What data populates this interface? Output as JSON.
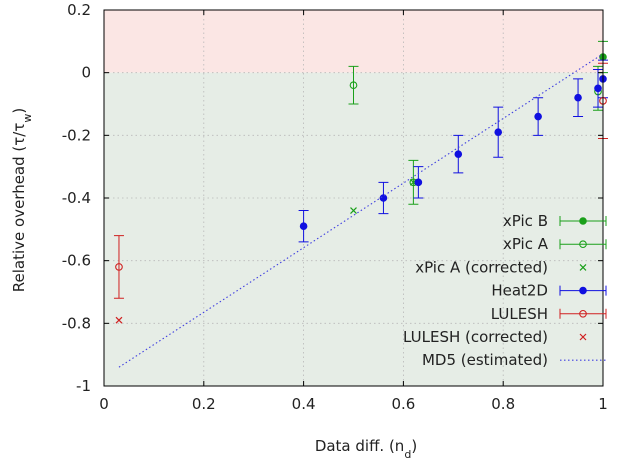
{
  "chart_data": {
    "type": "scatter",
    "title": "",
    "xlabel_main": "Data diff. (n",
    "xlabel_sub": "d",
    "xlabel_end": ")",
    "ylabel_main": "Relative overhead (τ/τ",
    "ylabel_sub": "w",
    "ylabel_end": ")",
    "xlim": [
      0,
      1
    ],
    "ylim": [
      -1,
      0.2
    ],
    "xticks": [
      {
        "value": 0,
        "label": "0"
      },
      {
        "value": 0.2,
        "label": "0.2"
      },
      {
        "value": 0.4,
        "label": "0.4"
      },
      {
        "value": 0.6,
        "label": "0.6"
      },
      {
        "value": 0.8,
        "label": "0.8"
      },
      {
        "value": 1,
        "label": "1"
      }
    ],
    "yticks": [
      {
        "value": -1,
        "label": "-1"
      },
      {
        "value": -0.8,
        "label": "-0.8"
      },
      {
        "value": -0.6,
        "label": "-0.6"
      },
      {
        "value": -0.4,
        "label": "-0.4"
      },
      {
        "value": -0.2,
        "label": "-0.2"
      },
      {
        "value": 0,
        "label": "0"
      },
      {
        "value": 0.2,
        "label": "0.2"
      }
    ],
    "grid": true,
    "legend_position": "bottom-right",
    "bands": [
      {
        "from": 0,
        "to": 0.2,
        "color": "#fbe6e4"
      },
      {
        "from": -1,
        "to": 0,
        "color": "#e6ede6"
      }
    ],
    "series": [
      {
        "name": "xPic B",
        "marker": "filled-circle",
        "color": "#1aa01a",
        "errorbars": true,
        "points": [
          {
            "x": 1.0,
            "y": 0.05,
            "lo": 0.0,
            "hi": 0.1
          }
        ]
      },
      {
        "name": "xPic A",
        "marker": "open-circle",
        "color": "#1aa01a",
        "errorbars": true,
        "points": [
          {
            "x": 0.5,
            "y": -0.04,
            "lo": -0.1,
            "hi": 0.02
          },
          {
            "x": 0.62,
            "y": -0.35,
            "lo": -0.42,
            "hi": -0.28
          },
          {
            "x": 0.99,
            "y": -0.06,
            "lo": -0.12,
            "hi": 0.02
          }
        ]
      },
      {
        "name": "xPic A (corrected)",
        "marker": "cross",
        "color": "#1aa01a",
        "errorbars": false,
        "points": [
          {
            "x": 0.5,
            "y": -0.44
          },
          {
            "x": 0.62,
            "y": -0.35
          }
        ]
      },
      {
        "name": "Heat2D",
        "marker": "filled-circle",
        "color": "#1010e0",
        "errorbars": true,
        "points": [
          {
            "x": 0.4,
            "y": -0.49,
            "lo": -0.54,
            "hi": -0.44
          },
          {
            "x": 0.56,
            "y": -0.4,
            "lo": -0.45,
            "hi": -0.35
          },
          {
            "x": 0.63,
            "y": -0.35,
            "lo": -0.4,
            "hi": -0.3
          },
          {
            "x": 0.71,
            "y": -0.26,
            "lo": -0.32,
            "hi": -0.2
          },
          {
            "x": 0.79,
            "y": -0.19,
            "lo": -0.27,
            "hi": -0.11
          },
          {
            "x": 0.87,
            "y": -0.14,
            "lo": -0.2,
            "hi": -0.08
          },
          {
            "x": 0.95,
            "y": -0.08,
            "lo": -0.14,
            "hi": -0.02
          },
          {
            "x": 0.99,
            "y": -0.05,
            "lo": -0.11,
            "hi": 0.01
          },
          {
            "x": 1.0,
            "y": -0.02,
            "lo": -0.08,
            "hi": 0.04
          }
        ]
      },
      {
        "name": "LULESH",
        "marker": "open-circle",
        "color": "#d02020",
        "errorbars": true,
        "points": [
          {
            "x": 0.03,
            "y": -0.62,
            "lo": -0.72,
            "hi": -0.52
          },
          {
            "x": 1.0,
            "y": -0.09,
            "lo": -0.21,
            "hi": 0.03
          }
        ]
      },
      {
        "name": "LULESH (corrected)",
        "marker": "cross",
        "color": "#d02020",
        "errorbars": false,
        "points": [
          {
            "x": 0.03,
            "y": -0.79
          }
        ]
      },
      {
        "name": "MD5 (estimated)",
        "marker": "dotted-line",
        "color": "#4040e0",
        "errorbars": false,
        "points": [
          {
            "x": 0.03,
            "y": -0.94
          },
          {
            "x": 1.0,
            "y": 0.06
          }
        ]
      }
    ]
  }
}
